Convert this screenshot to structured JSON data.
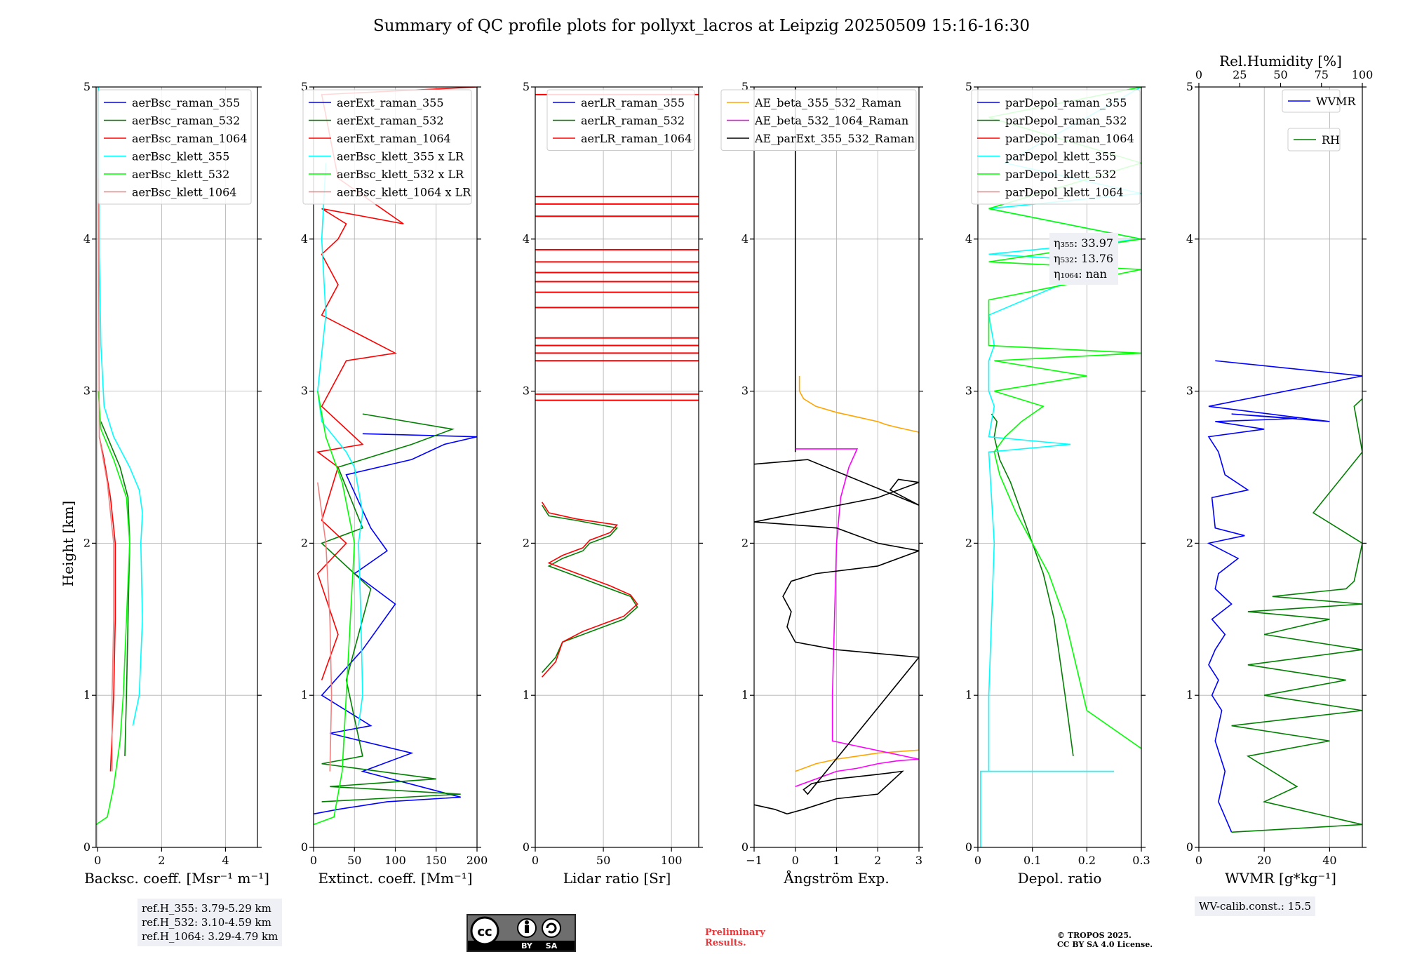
{
  "figure": {
    "title": "Summary of QC profile plots for pollyxt_lacros at Leipzig 20250509 15:16-16:30",
    "ylabel": "Height [km]",
    "ref_heights": [
      "ref.H_355: 3.79-5.29 km",
      "ref.H_532: 3.10-4.59 km",
      "ref.H_1064: 3.29-4.79 km"
    ],
    "wv_calib": "WV-calib.const.: 15.5",
    "preliminary": [
      "Preliminary",
      "Results."
    ],
    "copyright": [
      "© TROPOS 2025.",
      "CC BY SA 4.0 License."
    ],
    "cc_badge": [
      "BY",
      "SA"
    ],
    "logo_icon": "cc-by-sa-license-icon"
  },
  "chart_data": [
    {
      "type": "line",
      "xlabel": "Backsc. coeff. [Msr⁻¹ m⁻¹]",
      "ylabel": "Height [km]",
      "xlim": [
        -0.05,
        5
      ],
      "ylim": [
        0,
        5
      ],
      "xticks": [
        0,
        2,
        4
      ],
      "yticks": [
        0,
        1,
        2,
        3,
        4,
        5
      ],
      "grid": true,
      "legend": "top-right",
      "series": [
        {
          "name": "aerBsc_raman_355",
          "color": "#0000ff",
          "x": [],
          "y": []
        },
        {
          "name": "aerBsc_raman_532",
          "color": "#008000",
          "x": [
            0.85,
            0.9,
            0.95,
            1.0,
            0.95,
            0.7,
            0.4,
            0.1
          ],
          "y": [
            0.6,
            1.0,
            1.5,
            2.0,
            2.3,
            2.5,
            2.65,
            2.8
          ]
        },
        {
          "name": "aerBsc_raman_1064",
          "color": "#ff0000",
          "x": [
            0.4,
            0.5,
            0.55,
            0.55,
            0.4,
            0.2,
            0.05
          ],
          "y": [
            0.5,
            1.0,
            1.5,
            2.0,
            2.3,
            2.55,
            2.7
          ]
        },
        {
          "name": "aerBsc_klett_355",
          "color": "#00ffff",
          "x": [
            1.1,
            1.3,
            1.4,
            1.35,
            1.4,
            1.3,
            1.0,
            0.5,
            0.2,
            0.1,
            0.05,
            0.05,
            0.02
          ],
          "y": [
            0.8,
            1.0,
            1.5,
            2.0,
            2.2,
            2.35,
            2.5,
            2.7,
            2.9,
            3.3,
            3.9,
            4.5,
            5.0
          ]
        },
        {
          "name": "aerBsc_klett_532",
          "color": "#00ff00",
          "x": [
            -0.05,
            0.3,
            0.5,
            0.7,
            0.8,
            1.0,
            0.9,
            0.5,
            0.1,
            0.02
          ],
          "y": [
            0.15,
            0.2,
            0.4,
            0.7,
            1.0,
            2.0,
            2.3,
            2.55,
            2.75,
            3.0
          ]
        },
        {
          "name": "aerBsc_klett_1064",
          "color": "#f08080",
          "x": [
            0.45,
            0.45,
            0.5,
            0.5,
            0.3,
            0.05,
            0.02
          ],
          "y": [
            0.5,
            1.0,
            1.5,
            2.0,
            2.4,
            2.7,
            4.4
          ]
        }
      ]
    },
    {
      "type": "line",
      "xlabel": "Extinct. coeff. [Mm⁻¹]",
      "xlim": [
        0,
        200
      ],
      "ylim": [
        0,
        5
      ],
      "xticks": [
        0,
        50,
        100,
        150,
        200
      ],
      "yticks": [
        0,
        1,
        2,
        3,
        4,
        5
      ],
      "grid": true,
      "legend": "top-left",
      "series": [
        {
          "name": "aerExt_raman_355",
          "color": "#0000ff",
          "x": [
            0,
            30,
            90,
            180,
            60,
            120,
            20,
            70,
            10,
            60,
            100,
            50,
            90,
            70,
            40,
            120,
            160,
            200,
            60
          ],
          "y": [
            0.22,
            0.25,
            0.3,
            0.33,
            0.5,
            0.62,
            0.75,
            0.8,
            1.0,
            1.3,
            1.6,
            1.8,
            1.95,
            2.1,
            2.45,
            2.55,
            2.65,
            2.7,
            2.72
          ]
        },
        {
          "name": "aerExt_raman_532",
          "color": "#008000",
          "x": [
            10,
            180,
            20,
            150,
            10,
            60,
            40,
            70,
            10,
            60,
            30,
            120,
            170,
            60
          ],
          "y": [
            0.3,
            0.35,
            0.4,
            0.45,
            0.55,
            0.6,
            1.1,
            1.7,
            2.0,
            2.1,
            2.5,
            2.65,
            2.75,
            2.85
          ]
        },
        {
          "name": "aerExt_raman_1064",
          "color": "#ff0000",
          "x": [
            10,
            30,
            5,
            40,
            10,
            30,
            5,
            60,
            10,
            20,
            40,
            100,
            10,
            30,
            10,
            30,
            40,
            10,
            110,
            30,
            10,
            200
          ],
          "y": [
            1.1,
            1.4,
            1.8,
            2.0,
            2.15,
            2.5,
            2.6,
            2.65,
            2.9,
            3.0,
            3.2,
            3.25,
            3.5,
            3.7,
            3.9,
            4.0,
            4.1,
            4.2,
            4.1,
            4.4,
            4.95,
            5.0
          ]
        },
        {
          "name": "aerBsc_klett_355 x LR",
          "color": "#00ffff",
          "x": [
            55,
            60,
            58,
            55,
            60,
            50,
            40,
            10,
            5,
            15,
            10,
            15
          ],
          "y": [
            0.8,
            1.0,
            1.5,
            2.0,
            2.2,
            2.5,
            2.6,
            2.8,
            3.0,
            3.5,
            4.0,
            4.5
          ]
        },
        {
          "name": "aerBsc_klett_532 x LR",
          "color": "#00ff00",
          "x": [
            0,
            25,
            35,
            40,
            45,
            50,
            35,
            15,
            5
          ],
          "y": [
            0.15,
            0.2,
            0.5,
            1.0,
            1.5,
            2.0,
            2.4,
            2.7,
            3.0
          ]
        },
        {
          "name": "aerBsc_klett_1064 x LR",
          "color": "#f08080",
          "x": [
            20,
            22,
            20,
            15,
            5
          ],
          "y": [
            0.5,
            1.0,
            1.5,
            2.0,
            2.4
          ]
        }
      ]
    },
    {
      "type": "line",
      "xlabel": "Lidar ratio [Sr]",
      "xlim": [
        0,
        120
      ],
      "ylim": [
        0,
        5
      ],
      "xticks": [
        0,
        50,
        100
      ],
      "yticks": [
        0,
        1,
        2,
        3,
        4,
        5
      ],
      "grid": true,
      "legend": "top-right",
      "series": [
        {
          "name": "aerLR_raman_355",
          "color": "#0000ff",
          "x": [],
          "y": []
        },
        {
          "name": "aerLR_raman_532",
          "color": "#008000",
          "x": [
            5,
            15,
            20,
            35,
            50,
            65,
            75,
            70,
            55,
            40,
            25,
            10,
            20,
            35,
            40,
            55,
            60,
            30,
            10,
            5
          ],
          "y": [
            1.15,
            1.25,
            1.35,
            1.4,
            1.45,
            1.5,
            1.58,
            1.65,
            1.7,
            1.75,
            1.8,
            1.85,
            1.9,
            1.95,
            2.0,
            2.05,
            2.1,
            2.15,
            2.18,
            2.25
          ]
        },
        {
          "name": "aerLR_raman_1064",
          "color": "#ff0000",
          "x": [
            5,
            15,
            20,
            35,
            50,
            65,
            75,
            70,
            55,
            40,
            25,
            10,
            20,
            35,
            40,
            55,
            60,
            30,
            10,
            5
          ],
          "y": [
            1.12,
            1.22,
            1.35,
            1.42,
            1.47,
            1.52,
            1.6,
            1.66,
            1.72,
            1.77,
            1.82,
            1.87,
            1.92,
            1.97,
            2.02,
            2.07,
            2.12,
            2.16,
            2.2,
            2.27
          ]
        }
      ],
      "hlines_raman_1064": [
        2.98,
        2.94,
        3.2,
        3.25,
        3.3,
        3.35,
        3.55,
        3.65,
        3.72,
        3.78,
        3.85,
        3.93,
        4.15,
        4.23,
        4.28,
        4.95
      ]
    },
    {
      "type": "line",
      "xlabel": "Ångström Exp.",
      "xlim": [
        -1,
        3
      ],
      "ylim": [
        0,
        5
      ],
      "xticks": [
        -1,
        0,
        1,
        2,
        3
      ],
      "yticks": [
        0,
        1,
        2,
        3,
        4,
        5
      ],
      "grid": true,
      "legend": "top-left",
      "series": [
        {
          "name": "AE_beta_355_532_Raman",
          "color": "#ffa500",
          "x": [
            0,
            0.5,
            1.0,
            1.5,
            2.0,
            2.5,
            3.0,
            3.0,
            2.5,
            2.2,
            2.0,
            1.5,
            1.0,
            0.5,
            0.2,
            0.1,
            0.1
          ],
          "y": [
            0.5,
            0.55,
            0.58,
            0.6,
            0.62,
            0.63,
            0.64,
            2.73,
            2.76,
            2.78,
            2.8,
            2.83,
            2.86,
            2.9,
            2.95,
            3.0,
            3.1
          ]
        },
        {
          "name": "AE_beta_532_1064_Raman",
          "color": "#ff00ff",
          "x": [
            0,
            0.5,
            1.0,
            1.5,
            2.0,
            2.5,
            3.0,
            0.9,
            0.9,
            0.95,
            1.0,
            1.1,
            1.3,
            1.5,
            0.0
          ],
          "y": [
            0.4,
            0.45,
            0.5,
            0.52,
            0.55,
            0.57,
            0.58,
            0.7,
            1.0,
            1.5,
            2.0,
            2.3,
            2.5,
            2.62,
            2.62
          ]
        },
        {
          "name": "AE_parExt_355_532_Raman",
          "color": "#000000",
          "x": [
            -1,
            -0.5,
            -0.2,
            0.2,
            1.0,
            2.0,
            2.6,
            2.0,
            1.0,
            0.4,
            0.2,
            0.3,
            3.0,
            1.0,
            0,
            -0.2,
            -0.1,
            -0.3,
            -0.1,
            0.5,
            2.0,
            3.0,
            2.0,
            1.0,
            -1,
            2.0,
            3.0,
            2.5,
            2.3,
            3.0,
            0.3,
            -1
          ],
          "y": [
            0.28,
            0.25,
            0.22,
            0.25,
            0.32,
            0.35,
            0.5,
            0.48,
            0.45,
            0.42,
            0.38,
            0.35,
            1.25,
            1.3,
            1.35,
            1.45,
            1.55,
            1.65,
            1.75,
            1.8,
            1.85,
            1.95,
            2.0,
            2.1,
            2.14,
            2.3,
            2.4,
            2.42,
            2.35,
            2.25,
            2.55,
            2.52
          ]
        }
      ],
      "ae_parext_line_x": 0,
      "ae_parext_line_y": [
        2.6,
        5.0
      ]
    },
    {
      "type": "line",
      "xlabel": "Depol. ratio",
      "xlim": [
        0,
        0.3
      ],
      "ylim": [
        0,
        5
      ],
      "xticks": [
        0.0,
        0.1,
        0.2,
        0.3
      ],
      "yticks": [
        0,
        1,
        2,
        3,
        4,
        5
      ],
      "grid": true,
      "legend": "top-left",
      "eta_labels": [
        "η₃₅₅: 33.97",
        "η₅₃₂: 13.76",
        "η₁₀₆₄: nan"
      ],
      "series": [
        {
          "name": "parDepol_raman_355",
          "color": "#0000ff",
          "x": [],
          "y": []
        },
        {
          "name": "parDepol_raman_532",
          "color": "#008000",
          "x": [
            0.175,
            0.16,
            0.14,
            0.12,
            0.1,
            0.08,
            0.06,
            0.04,
            0.03,
            0.035,
            0.025
          ],
          "y": [
            0.6,
            1.0,
            1.5,
            1.8,
            2.0,
            2.2,
            2.4,
            2.55,
            2.7,
            2.8,
            2.85
          ]
        },
        {
          "name": "parDepol_raman_1064",
          "color": "#ff0000",
          "x": [],
          "y": []
        },
        {
          "name": "parDepol_klett_355",
          "color": "#00ffff",
          "x": [
            0.005,
            0.005,
            0.25,
            0.02,
            0.02,
            0.03,
            0.02,
            0.17,
            0.02,
            0.03,
            0.02,
            0.02,
            0.03,
            0.02,
            0.25,
            0.02,
            0.3,
            0.02,
            0.3,
            0.05,
            0.3
          ],
          "y": [
            0.0,
            0.5,
            0.5,
            0.5,
            1.0,
            2.0,
            2.6,
            2.65,
            2.7,
            2.9,
            3.0,
            3.2,
            3.3,
            3.5,
            3.85,
            3.9,
            4.0,
            4.2,
            4.3,
            4.5,
            5.0
          ]
        },
        {
          "name": "parDepol_klett_532",
          "color": "#00ff00",
          "x": [
            0.3,
            0.2,
            0.18,
            0.16,
            0.13,
            0.1,
            0.07,
            0.04,
            0.03,
            0.05,
            0.08,
            0.12,
            0.03,
            0.2,
            0.03,
            0.3,
            0.02,
            0.02,
            0.3,
            0.02,
            0.3,
            0.02,
            0.3,
            0.02,
            0.3
          ],
          "y": [
            0.65,
            0.9,
            1.2,
            1.5,
            1.8,
            2.0,
            2.2,
            2.45,
            2.6,
            2.7,
            2.8,
            2.9,
            3.0,
            3.1,
            3.2,
            3.25,
            3.3,
            3.6,
            3.8,
            3.85,
            4.0,
            4.2,
            4.5,
            4.8,
            5.0
          ]
        },
        {
          "name": "parDepol_klett_1064",
          "color": "#f08080",
          "x": [],
          "y": []
        }
      ]
    },
    {
      "type": "line",
      "xlabel": "WVMR [g*kg⁻¹]",
      "x2label": "Rel.Humidity [%]",
      "xlim": [
        0,
        50
      ],
      "x2lim": [
        0,
        100
      ],
      "ylim": [
        0,
        5
      ],
      "xticks": [
        0,
        20,
        40
      ],
      "x2ticks": [
        0,
        25,
        50,
        75,
        100
      ],
      "yticks": [
        0,
        1,
        2,
        3,
        4,
        5
      ],
      "grid": true,
      "legend": "top-right",
      "series": [
        {
          "name": "WVMR",
          "color": "#0000ff",
          "x": [
            10,
            6,
            8,
            5,
            7,
            4,
            6,
            3,
            5,
            8,
            4,
            10,
            5,
            6,
            12,
            3,
            14,
            5,
            4,
            15,
            8,
            6,
            3,
            20,
            5,
            30,
            10,
            40,
            3,
            50,
            5
          ],
          "y": [
            0.1,
            0.3,
            0.5,
            0.7,
            0.9,
            1.0,
            1.1,
            1.2,
            1.3,
            1.4,
            1.5,
            1.6,
            1.7,
            1.8,
            1.9,
            2.0,
            2.05,
            2.1,
            2.3,
            2.35,
            2.45,
            2.6,
            2.7,
            2.75,
            2.8,
            2.82,
            2.85,
            2.8,
            2.9,
            3.1,
            3.2
          ]
        },
        {
          "name": "RH",
          "color": "#008000",
          "x2": [
            20,
            100,
            40,
            60,
            30,
            80,
            20,
            100,
            40,
            90,
            30,
            100,
            40,
            80,
            30,
            100,
            45,
            90,
            95,
            100,
            70,
            100,
            95,
            100
          ],
          "y": [
            0.1,
            0.15,
            0.3,
            0.4,
            0.6,
            0.7,
            0.8,
            0.9,
            1.0,
            1.1,
            1.2,
            1.3,
            1.4,
            1.5,
            1.55,
            1.6,
            1.65,
            1.7,
            1.75,
            2.0,
            2.2,
            2.6,
            2.9,
            2.95
          ]
        }
      ]
    }
  ]
}
